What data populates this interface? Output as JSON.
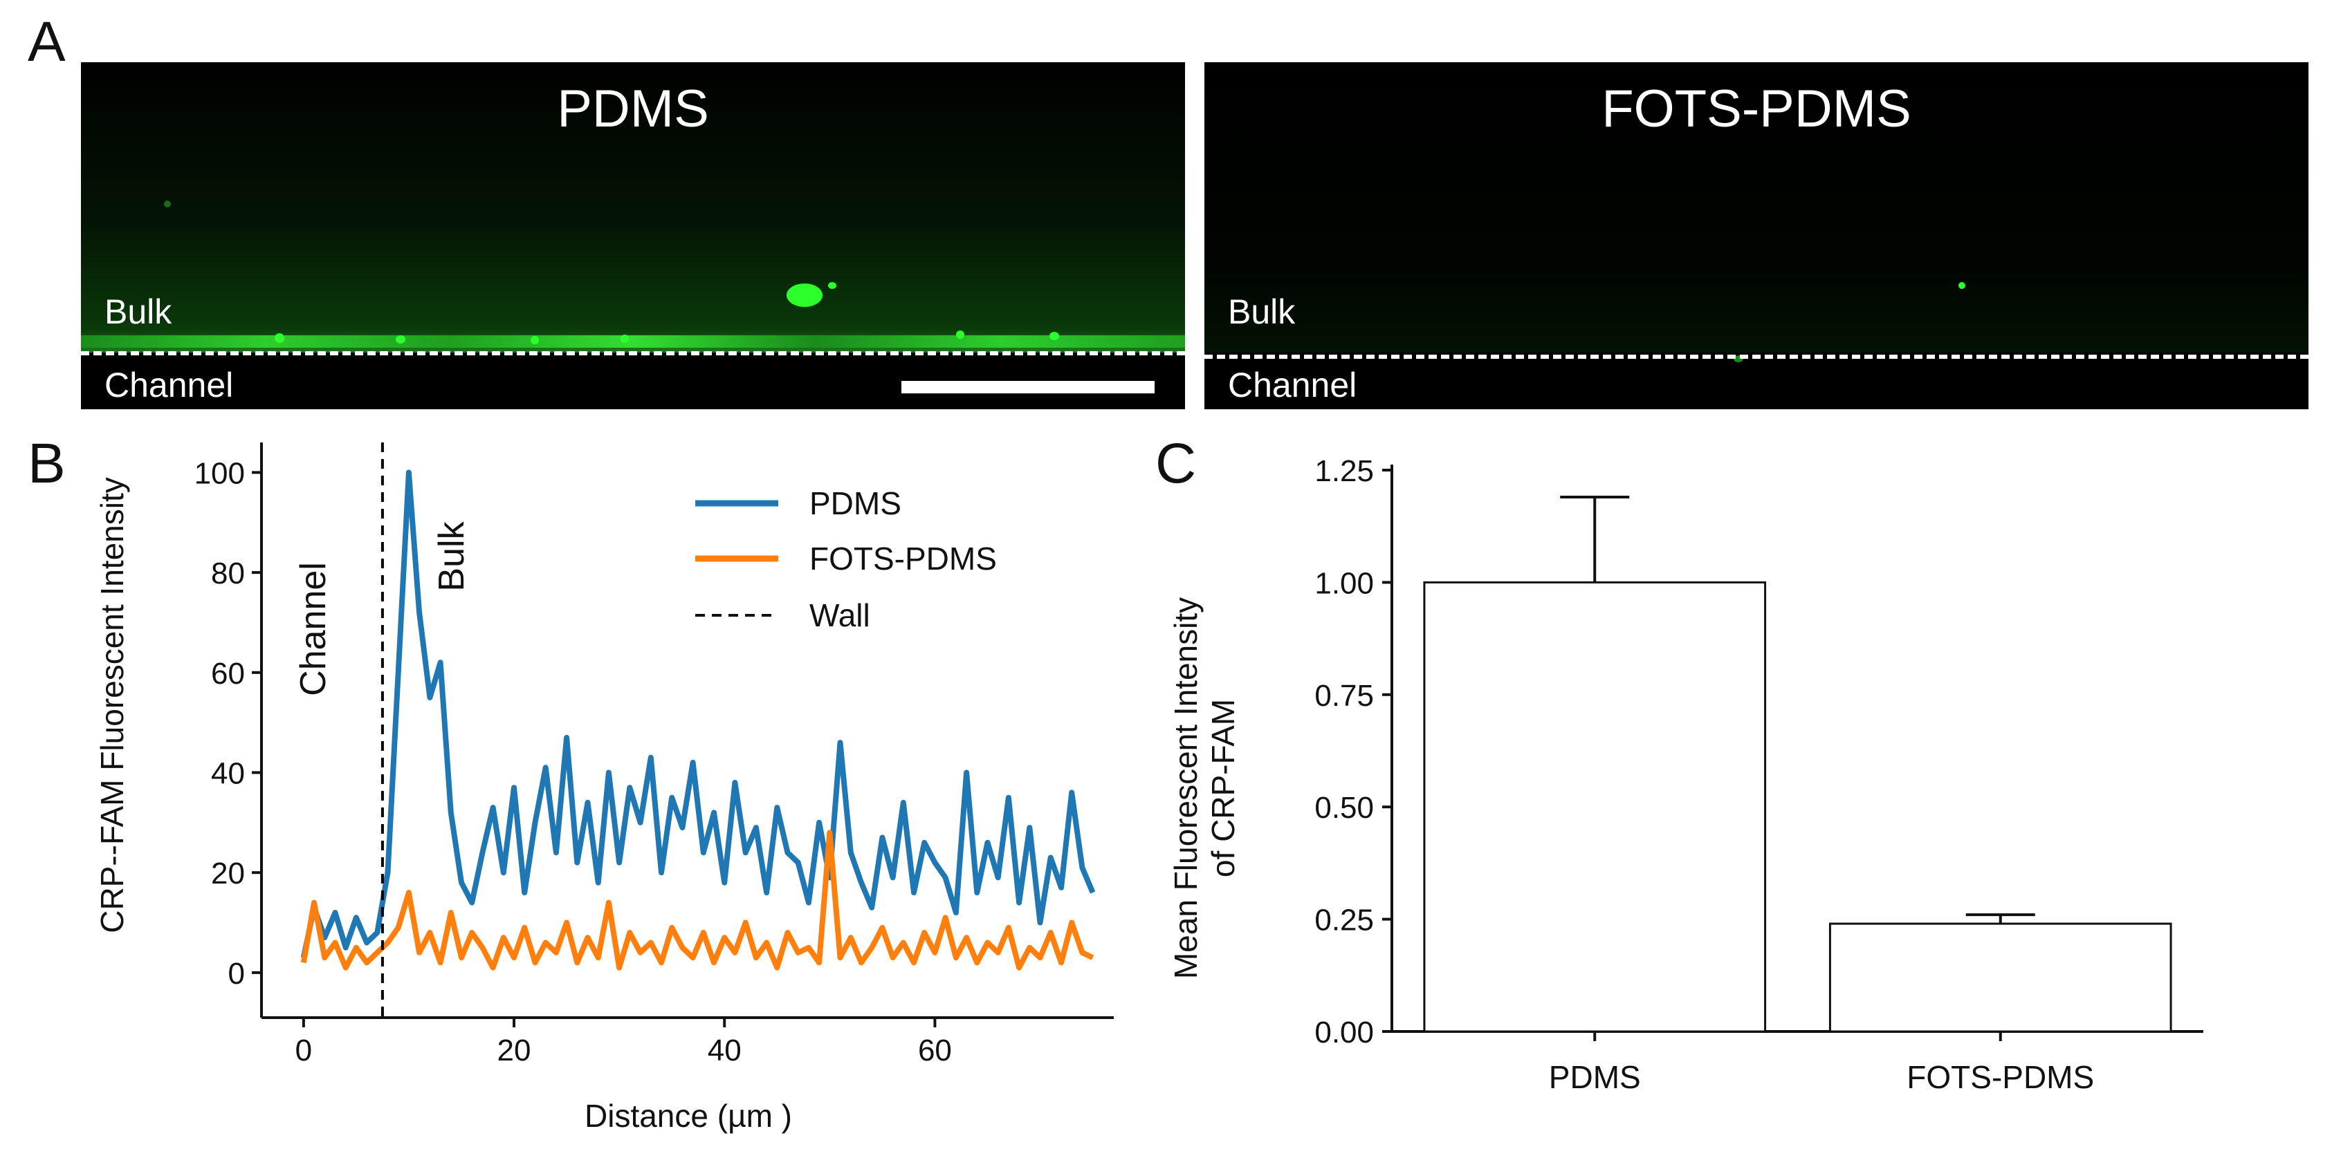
{
  "panel_a": {
    "letter": "A",
    "images": [
      {
        "title": "PDMS",
        "bulk_label": "Bulk",
        "channel_label": "Channel"
      },
      {
        "title": "FOTS-PDMS",
        "bulk_label": "Bulk",
        "channel_label": "Channel"
      }
    ]
  },
  "chart_data": [
    {
      "panel": "B",
      "type": "line",
      "title": "",
      "xlabel": "Distance (µm )",
      "ylabel": "CRP--FAM Fluorescent Intensity",
      "xlim": [
        -4,
        77
      ],
      "ylim": [
        -9,
        106
      ],
      "xticks": [
        "0",
        "20",
        "40",
        "60"
      ],
      "yticks": [
        "0",
        "20",
        "40",
        "60",
        "80",
        "100"
      ],
      "annotations": [
        "Channel",
        "Bulk"
      ],
      "wall_x": 7.5,
      "legend_position": "top-right",
      "series": [
        {
          "name": "PDMS",
          "color": "#1f77b4",
          "x": [
            0,
            1,
            2,
            3,
            4,
            5,
            6,
            7,
            8,
            9,
            10,
            11,
            12,
            13,
            14,
            15,
            16,
            17,
            18,
            19,
            20,
            21,
            22,
            23,
            24,
            25,
            26,
            27,
            28,
            29,
            30,
            31,
            32,
            33,
            34,
            35,
            36,
            37,
            38,
            39,
            40,
            41,
            42,
            43,
            44,
            45,
            46,
            47,
            48,
            49,
            50,
            51,
            52,
            53,
            54,
            55,
            56,
            57,
            58,
            59,
            60,
            61,
            62,
            63,
            64,
            65,
            66,
            67,
            68,
            69,
            70,
            71,
            72,
            73,
            74,
            75
          ],
          "values": [
            3,
            13,
            7,
            12,
            5,
            11,
            6,
            8,
            20,
            60,
            100,
            72,
            55,
            62,
            32,
            18,
            14,
            24,
            33,
            20,
            37,
            16,
            30,
            41,
            24,
            47,
            22,
            34,
            18,
            40,
            22,
            37,
            30,
            43,
            20,
            35,
            29,
            42,
            24,
            32,
            18,
            38,
            24,
            29,
            16,
            33,
            24,
            22,
            14,
            30,
            19,
            46,
            24,
            18,
            13,
            27,
            19,
            34,
            16,
            26,
            22,
            19,
            12,
            40,
            16,
            26,
            19,
            35,
            14,
            29,
            10,
            23,
            17,
            36,
            21,
            16
          ]
        },
        {
          "name": "FOTS-PDMS",
          "color": "#ff7f0e",
          "x": [
            0,
            1,
            2,
            3,
            4,
            5,
            6,
            7,
            8,
            9,
            10,
            11,
            12,
            13,
            14,
            15,
            16,
            17,
            18,
            19,
            20,
            21,
            22,
            23,
            24,
            25,
            26,
            27,
            28,
            29,
            30,
            31,
            32,
            33,
            34,
            35,
            36,
            37,
            38,
            39,
            40,
            41,
            42,
            43,
            44,
            45,
            46,
            47,
            48,
            49,
            50,
            51,
            52,
            53,
            54,
            55,
            56,
            57,
            58,
            59,
            60,
            61,
            62,
            63,
            64,
            65,
            66,
            67,
            68,
            69,
            70,
            71,
            72,
            73,
            74,
            75
          ],
          "values": [
            2,
            14,
            3,
            6,
            1,
            5,
            2,
            4,
            6,
            9,
            16,
            4,
            8,
            2,
            12,
            3,
            8,
            5,
            1,
            7,
            3,
            9,
            2,
            6,
            4,
            10,
            2,
            7,
            3,
            14,
            1,
            8,
            4,
            6,
            2,
            9,
            5,
            3,
            8,
            2,
            7,
            4,
            10,
            3,
            6,
            1,
            8,
            4,
            5,
            2,
            28,
            3,
            7,
            2,
            5,
            9,
            3,
            6,
            2,
            8,
            4,
            11,
            3,
            7,
            2,
            6,
            4,
            9,
            1,
            5,
            3,
            8,
            2,
            10,
            4,
            3
          ]
        },
        {
          "name": "Wall",
          "color": "#000000",
          "x": [
            7.5,
            7.5
          ],
          "values": [
            -9,
            106
          ]
        }
      ]
    },
    {
      "panel": "C",
      "type": "bar",
      "title": "",
      "categories": [
        "PDMS",
        "FOTS-PDMS"
      ],
      "values": [
        1.0,
        0.24
      ],
      "errors": [
        0.19,
        0.02
      ],
      "xlabel": "",
      "ylabel": "Mean Fluorescent Intensity of CRP-FAM",
      "ylabel_lines": [
        "Mean Fluorescent Intensity",
        "of CRP-FAM"
      ],
      "ylim": [
        0,
        1.25
      ],
      "yticks": [
        "0.00",
        "0.25",
        "0.50",
        "0.75",
        "1.00",
        "1.25"
      ]
    }
  ],
  "panel_letters": {
    "b": "B",
    "c": "C"
  }
}
